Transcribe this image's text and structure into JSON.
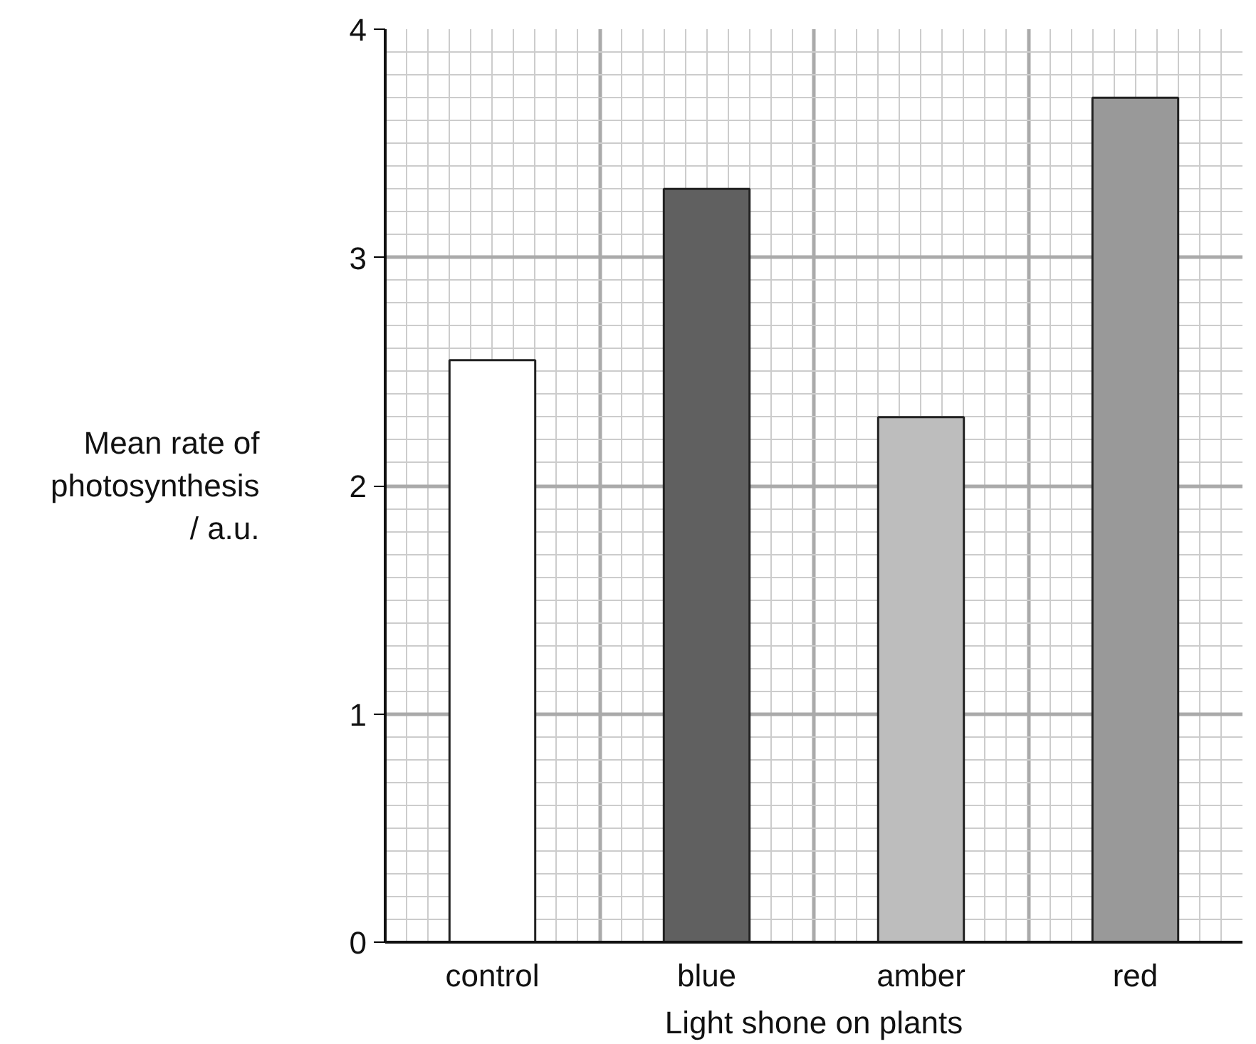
{
  "chart_data": {
    "type": "bar",
    "xlabel": "Light shone on plants",
    "ylabel": "Mean rate of photosynthesis / a.u.",
    "categories": [
      "control",
      "blue",
      "amber",
      "red"
    ],
    "values": [
      2.55,
      3.3,
      2.3,
      3.7
    ],
    "colors": [
      "#ffffff",
      "#606060",
      "#bdbdbd",
      "#999999"
    ],
    "ylim": [
      0,
      4
    ],
    "yticks": [
      0,
      1,
      2,
      3,
      4
    ],
    "grid": true
  }
}
